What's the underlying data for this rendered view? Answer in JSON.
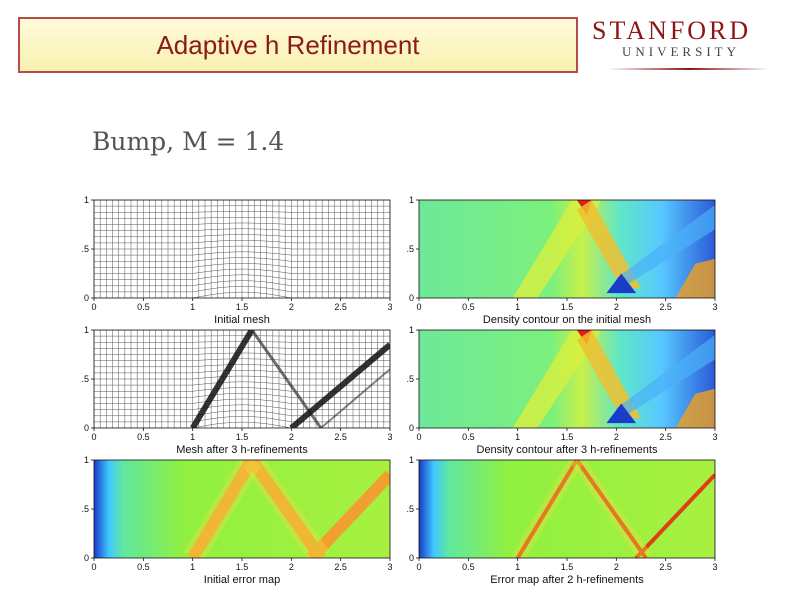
{
  "slide": {
    "title": "Adaptive h Refinement",
    "subtitle": "Bump, M = 1.4",
    "logo": {
      "top": "STANFORD",
      "bottom": "UNIVERSITY"
    }
  },
  "axes": {
    "x_ticks": [
      "0",
      "0.5",
      "1",
      "1.5",
      "2",
      "2.5",
      "3"
    ],
    "y_ticks": [
      "0",
      ".5",
      "1"
    ]
  },
  "panels": [
    {
      "id": "initial-mesh",
      "caption": "Initial mesh",
      "kind": "mesh"
    },
    {
      "id": "density-initial",
      "caption": "Density contour on the initial mesh",
      "kind": "contour"
    },
    {
      "id": "mesh-refined",
      "caption": "Mesh after 3 h-refinements",
      "kind": "mesh-refined"
    },
    {
      "id": "density-refined",
      "caption": "Density contour after 3 h-refinements",
      "kind": "contour-refined"
    },
    {
      "id": "error-initial",
      "caption": "Initial error map",
      "kind": "error"
    },
    {
      "id": "error-refined",
      "caption": "Error map after 2 h-refinements",
      "kind": "error-refined"
    }
  ],
  "colors": {
    "title_border": "#b84a4a",
    "title_text": "#8b1a1a",
    "logo_red": "#8c1515"
  }
}
